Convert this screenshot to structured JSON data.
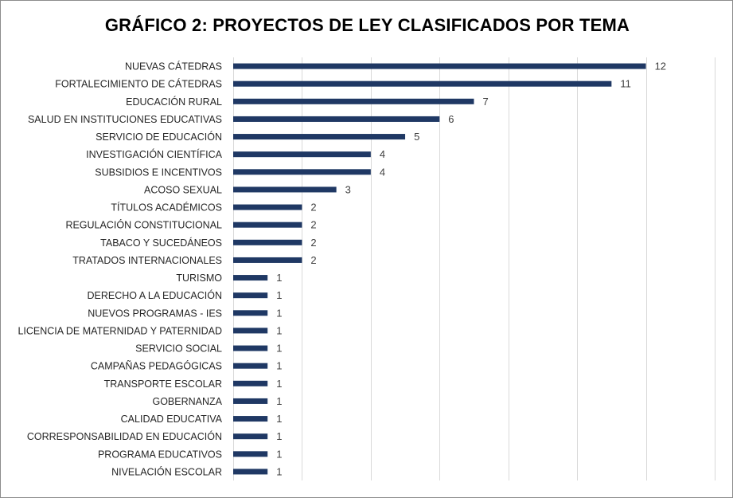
{
  "chart_data": {
    "type": "bar",
    "orientation": "horizontal",
    "title": "GRÁFICO 2: PROYECTOS DE LEY CLASIFICADOS POR TEMA",
    "xlabel": "",
    "ylabel": "",
    "xlim": [
      0,
      14
    ],
    "grid": "vertical",
    "bar_color": "#1f3864",
    "categories": [
      "NUEVAS CÁTEDRAS",
      "FORTALECIMIENTO DE CÁTEDRAS",
      "EDUCACIÓN RURAL",
      "SALUD EN INSTITUCIONES EDUCATIVAS",
      "SERVICIO DE EDUCACIÓN",
      "INVESTIGACIÓN CIENTÍFICA",
      "SUBSIDIOS E INCENTIVOS",
      "ACOSO SEXUAL",
      "TÍTULOS ACADÉMICOS",
      "REGULACIÓN CONSTITUCIONAL",
      "TABACO Y SUCEDÁNEOS",
      "TRATADOS INTERNACIONALES",
      "TURISMO",
      "DERECHO A LA EDUCACIÓN",
      "NUEVOS PROGRAMAS - IES",
      "LICENCIA DE MATERNIDAD Y PATERNIDAD",
      "SERVICIO SOCIAL",
      "CAMPAÑAS PEDAGÓGICAS",
      "TRANSPORTE ESCOLAR",
      "GOBERNANZA",
      "CALIDAD EDUCATIVA",
      "CORRESPONSABILIDAD EN EDUCACIÓN",
      "PROGRAMA EDUCATIVOS",
      "NIVELACIÓN ESCOLAR"
    ],
    "values": [
      12,
      11,
      7,
      6,
      5,
      4,
      4,
      3,
      2,
      2,
      2,
      2,
      1,
      1,
      1,
      1,
      1,
      1,
      1,
      1,
      1,
      1,
      1,
      1
    ]
  }
}
